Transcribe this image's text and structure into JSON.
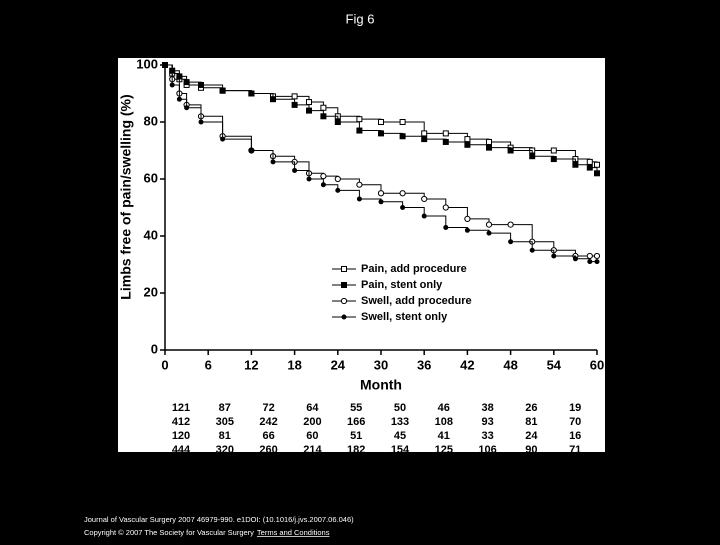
{
  "chart_data": {
    "type": "line",
    "title": "Fig 6",
    "x_label": "Month",
    "y_label": "Limbs free of pain/swelling (%)",
    "x": [
      0,
      1,
      2,
      3,
      5,
      8,
      12,
      15,
      18,
      20,
      22,
      24,
      27,
      30,
      33,
      36,
      39,
      42,
      45,
      48,
      51,
      54,
      57,
      59,
      60
    ],
    "series": [
      {
        "name": "Pain, add procedure",
        "color": "#000000",
        "marker": "square",
        "filled": false,
        "values": [
          100,
          97,
          95,
          93,
          92,
          91,
          90,
          89,
          89,
          87,
          85,
          82,
          81,
          80,
          80,
          76,
          76,
          74,
          73,
          71,
          70,
          70,
          67,
          66,
          65
        ]
      },
      {
        "name": "Pain, stent only",
        "color": "#000000",
        "marker": "square",
        "filled": true,
        "values": [
          100,
          98,
          96,
          94,
          93,
          91,
          90,
          88,
          86,
          84,
          82,
          80,
          77,
          76,
          75,
          74,
          73,
          72,
          71,
          70,
          68,
          67,
          65,
          64,
          62
        ]
      },
      {
        "name": "Swell, add procedure",
        "color": "#000000",
        "marker": "circle",
        "filled": false,
        "values": [
          100,
          95,
          90,
          86,
          82,
          75,
          70,
          68,
          66,
          62,
          61,
          60,
          58,
          55,
          55,
          53,
          50,
          46,
          44,
          44,
          38,
          35,
          33,
          33,
          33
        ]
      },
      {
        "name": "Swell, stent only",
        "color": "#000000",
        "marker": "circle",
        "filled": true,
        "values": [
          100,
          93,
          88,
          85,
          80,
          74,
          70,
          66,
          63,
          60,
          58,
          56,
          53,
          52,
          50,
          47,
          43,
          42,
          41,
          38,
          35,
          33,
          32,
          31,
          31
        ]
      }
    ],
    "xlim": [
      0,
      60
    ],
    "xticks": [
      0,
      6,
      12,
      18,
      24,
      30,
      36,
      42,
      48,
      54,
      60
    ],
    "ylim": [
      0,
      100
    ],
    "yticks": [
      0,
      20,
      40,
      60,
      80,
      100
    ],
    "step": true,
    "legend": "lower right",
    "risk_table": [
      [
        121,
        87,
        72,
        64,
        55,
        50,
        46,
        38,
        26,
        19
      ],
      [
        412,
        305,
        242,
        200,
        166,
        133,
        108,
        93,
        81,
        70
      ],
      [
        120,
        81,
        66,
        60,
        51,
        45,
        41,
        33,
        24,
        16
      ],
      [
        444,
        320,
        260,
        214,
        182,
        154,
        125,
        106,
        90,
        71
      ]
    ]
  },
  "footer": {
    "citation": "Journal of Vascular Surgery 2007 46979-990. e1DOI: (10.1016/j.jvs.2007.06.046)",
    "copyright": "Copyright © 2007 The Society for Vascular Surgery",
    "link": "Terms and Conditions"
  }
}
